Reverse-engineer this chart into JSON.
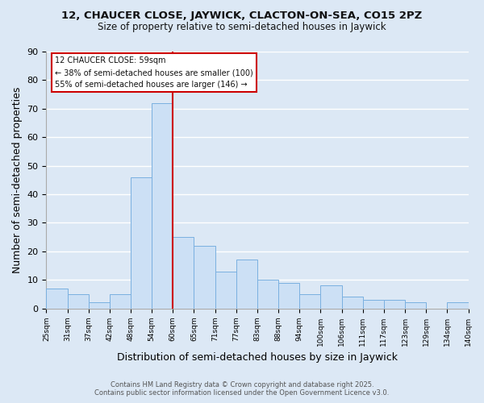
{
  "title_line1": "12, CHAUCER CLOSE, JAYWICK, CLACTON-ON-SEA, CO15 2PZ",
  "title_line2": "Size of property relative to semi-detached houses in Jaywick",
  "xlabel": "Distribution of semi-detached houses by size in Jaywick",
  "ylabel": "Number of semi-detached properties",
  "bar_labels": [
    "25sqm",
    "31sqm",
    "37sqm",
    "42sqm",
    "48sqm",
    "54sqm",
    "60sqm",
    "65sqm",
    "71sqm",
    "77sqm",
    "83sqm",
    "88sqm",
    "94sqm",
    "100sqm",
    "106sqm",
    "111sqm",
    "117sqm",
    "123sqm",
    "129sqm",
    "134sqm",
    "140sqm"
  ],
  "bar_values": [
    7,
    5,
    2,
    5,
    46,
    72,
    25,
    22,
    13,
    17,
    10,
    9,
    5,
    8,
    4,
    3,
    3,
    2,
    0,
    2
  ],
  "bar_color": "#cce0f5",
  "bar_edge_color": "#7ab0e0",
  "ylim": [
    0,
    90
  ],
  "yticks": [
    0,
    10,
    20,
    30,
    40,
    50,
    60,
    70,
    80,
    90
  ],
  "vline_color": "#cc0000",
  "annotation_title": "12 CHAUCER CLOSE: 59sqm",
  "annotation_line1": "← 38% of semi-detached houses are smaller (100)",
  "annotation_line2": "55% of semi-detached houses are larger (146) →",
  "annotation_box_facecolor": "#ffffff",
  "annotation_box_edgecolor": "#cc0000",
  "bg_color": "#dce8f5",
  "footer_line1": "Contains HM Land Registry data © Crown copyright and database right 2025.",
  "footer_line2": "Contains public sector information licensed under the Open Government Licence v3.0.",
  "grid_color": "#ffffff",
  "vline_bar_index": 6
}
